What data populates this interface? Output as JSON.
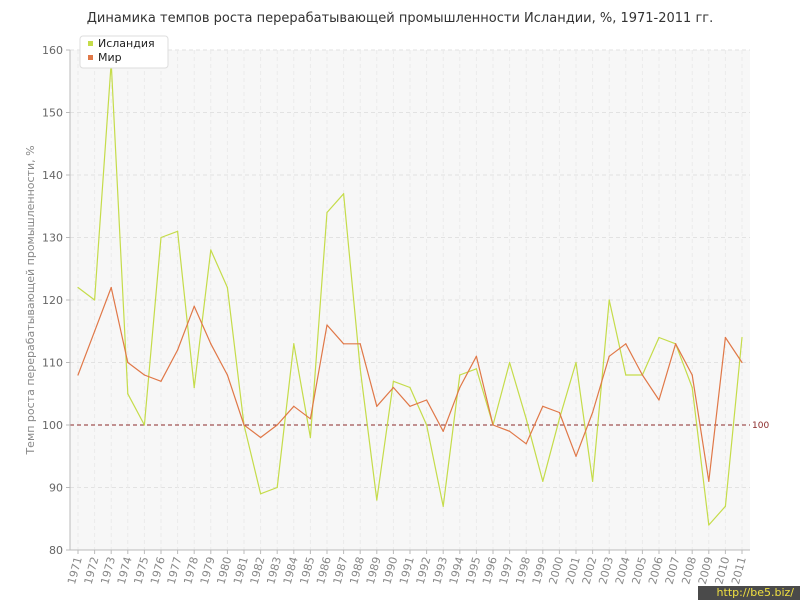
{
  "chart_data": {
    "type": "line",
    "title": "Динамика темпов роста перерабатывающей промышленности Исландии, %, 1971-2011 гг.",
    "ylabel": "Темп роста перерабатывающей промышленности, %",
    "xlabel": "",
    "ylim": [
      80,
      160
    ],
    "yticks": [
      80,
      90,
      100,
      110,
      120,
      130,
      140,
      150,
      160
    ],
    "grid": true,
    "legend_position": "top-left",
    "reference_line": {
      "value": 100,
      "label": "100",
      "color": "#8b2a2a"
    },
    "categories": [
      "1971",
      "1972",
      "1973",
      "1974",
      "1975",
      "1976",
      "1977",
      "1978",
      "1979",
      "1980",
      "1981",
      "1982",
      "1983",
      "1984",
      "1985",
      "1986",
      "1987",
      "1988",
      "1989",
      "1990",
      "1991",
      "1992",
      "1993",
      "1994",
      "1995",
      "1996",
      "1997",
      "1998",
      "1999",
      "2000",
      "2001",
      "2002",
      "2003",
      "2004",
      "2005",
      "2006",
      "2007",
      "2008",
      "2009",
      "2010",
      "2011"
    ],
    "series": [
      {
        "name": "Исландия",
        "color": "#c5dc4a",
        "values": [
          122,
          120,
          158,
          105,
          100,
          130,
          131,
          106,
          128,
          122,
          100,
          89,
          90,
          113,
          98,
          134,
          137,
          109,
          88,
          107,
          106,
          100,
          87,
          108,
          109,
          100,
          110,
          101,
          91,
          101,
          110,
          91,
          120,
          108,
          108,
          114,
          113,
          106,
          84,
          87,
          114
        ]
      },
      {
        "name": "Мир",
        "color": "#e07848",
        "values": [
          108,
          115,
          122,
          110,
          108,
          107,
          112,
          119,
          113,
          108,
          100,
          98,
          100,
          103,
          101,
          116,
          113,
          113,
          103,
          106,
          103,
          104,
          99,
          106,
          111,
          100,
          99,
          97,
          103,
          102,
          95,
          102,
          111,
          113,
          108,
          104,
          113,
          108,
          91,
          114,
          110
        ]
      }
    ]
  },
  "watermark": "http://be5.biz/"
}
